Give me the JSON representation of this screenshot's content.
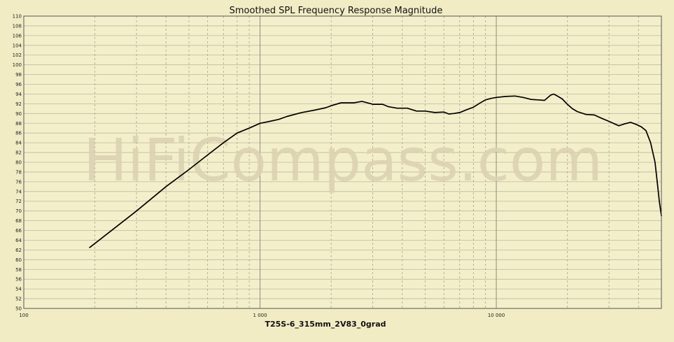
{
  "chart_data": {
    "type": "line",
    "title": "Smoothed SPL Frequency Response Magnitude",
    "xlabel": "T25S-6_315mm_2V83_0grad",
    "ylabel": "",
    "x_scale": "log",
    "xlim": [
      100,
      50000
    ],
    "ylim": [
      50,
      110
    ],
    "grid": true,
    "watermark": "HiFiCompass.com",
    "x_tick_labels": [
      {
        "value": 100,
        "label": "100"
      },
      {
        "value": 1000,
        "label": "1 000"
      },
      {
        "value": 10000,
        "label": "10 000"
      }
    ],
    "y_ticks": [
      50,
      52,
      54,
      56,
      58,
      60,
      62,
      64,
      66,
      68,
      70,
      72,
      74,
      76,
      78,
      80,
      82,
      84,
      86,
      88,
      90,
      92,
      94,
      96,
      98,
      100,
      102,
      104,
      106,
      108,
      110
    ],
    "series": [
      {
        "name": "",
        "color": "#000000",
        "x": [
          190,
          250,
          300,
          400,
          500,
          600,
          700,
          800,
          900,
          1000,
          1100,
          1200,
          1300,
          1500,
          1700,
          1900,
          2000,
          2200,
          2500,
          2700,
          3000,
          3300,
          3500,
          3800,
          4200,
          4600,
          5000,
          5500,
          6000,
          6300,
          6600,
          7000,
          7500,
          8000,
          8500,
          9000,
          9500,
          10000,
          11000,
          12000,
          13000,
          14000,
          15000,
          16000,
          17000,
          17500,
          18000,
          19000,
          20000,
          21000,
          22000,
          24000,
          26000,
          28000,
          30000,
          33000,
          35000,
          37000,
          39000,
          41000,
          43000,
          45000,
          47000,
          48000,
          49000,
          50000
        ],
        "y": [
          62.5,
          67,
          70,
          75,
          78.5,
          81.5,
          84,
          86,
          87,
          88,
          88.4,
          88.8,
          89.4,
          90.2,
          90.7,
          91.2,
          91.6,
          92.2,
          92.2,
          92.5,
          91.9,
          91.9,
          91.4,
          91.1,
          91.1,
          90.5,
          90.5,
          90.2,
          90.3,
          89.9,
          90,
          90.2,
          90.8,
          91.3,
          92.1,
          92.8,
          93.1,
          93.3,
          93.5,
          93.6,
          93.3,
          92.9,
          92.8,
          92.7,
          93.8,
          94,
          93.7,
          93,
          91.9,
          91,
          90.4,
          89.8,
          89.7,
          89,
          88.4,
          87.5,
          87.9,
          88.2,
          87.8,
          87.3,
          86.5,
          84,
          80,
          76,
          72,
          69
        ]
      }
    ]
  }
}
